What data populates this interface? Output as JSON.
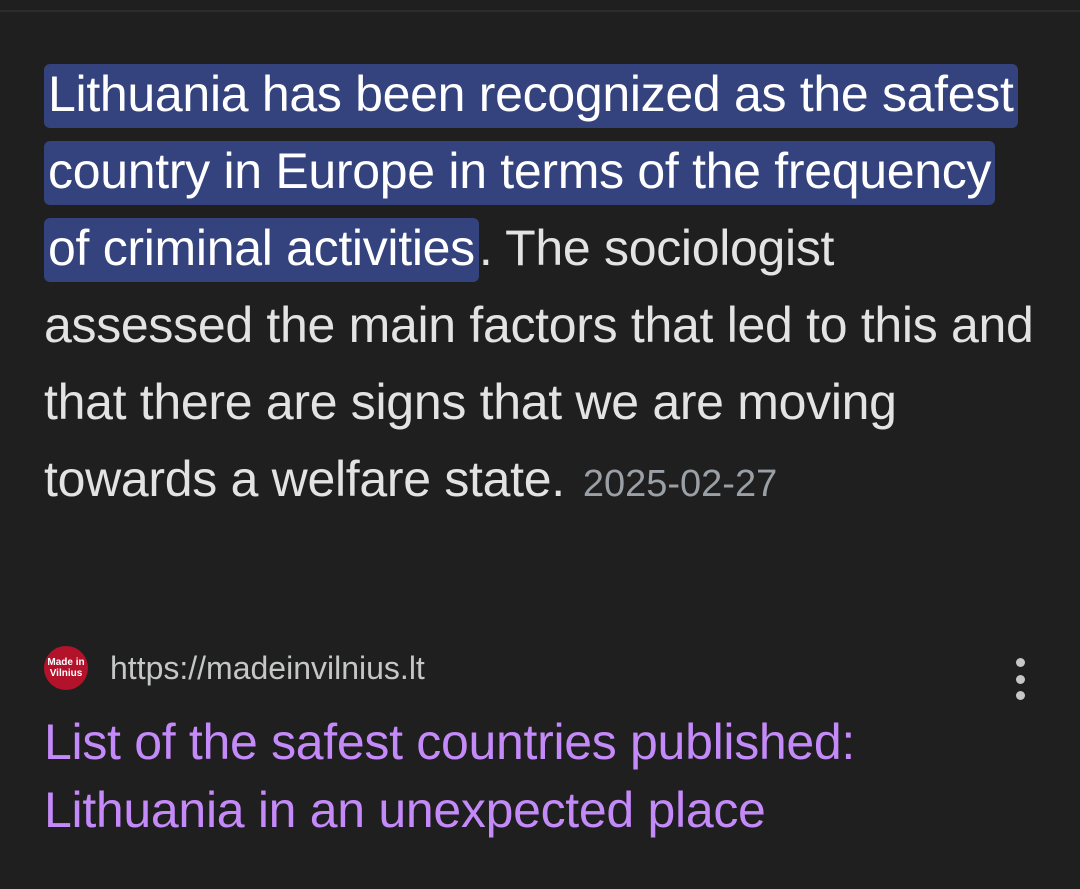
{
  "snippet": {
    "highlighted": "Lithuania has been recognized as the safest country in Europe in terms of the frequency of criminal activities",
    "rest": ". The sociologist assessed the main factors that led to this and that there are signs that we are moving towards a welfare state.",
    "date": "2025-02-27"
  },
  "result": {
    "favicon_text": "Made in Vilnius",
    "url": "https://madeinvilnius.lt",
    "title": "List of the safest countries published: Lithuania in an unexpected place",
    "more_icon": "more-vert-icon"
  },
  "colors": {
    "background": "#1f1f1f",
    "highlight": "#34437e",
    "title_link": "#c58af9",
    "date": "#9aa0a6"
  }
}
